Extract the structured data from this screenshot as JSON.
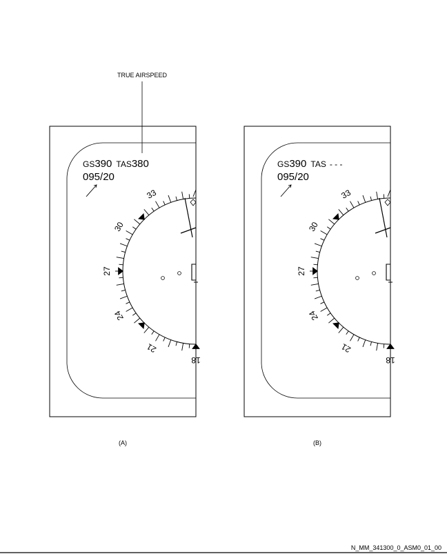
{
  "callout": {
    "label": "TRUE AIRSPEED"
  },
  "panels": [
    {
      "caption": "(A)",
      "gs_prefix": "GS",
      "gs_value": "390",
      "tas_prefix": "TAS",
      "tas_value": "380",
      "wind": "095/20",
      "headings": [
        "33",
        "30",
        "27",
        "24",
        "21",
        "18"
      ]
    },
    {
      "caption": "(B)",
      "gs_prefix": "GS",
      "gs_value": "390",
      "tas_prefix": "TAS",
      "tas_value": "- - -",
      "wind": "095/20",
      "headings": [
        "33",
        "30",
        "27",
        "24",
        "21",
        "18"
      ]
    }
  ],
  "footer": {
    "code": "N_MM_341300_0_ASM0_01_00"
  },
  "colors": {
    "ink": "#000000",
    "paper": "#ffffff"
  }
}
